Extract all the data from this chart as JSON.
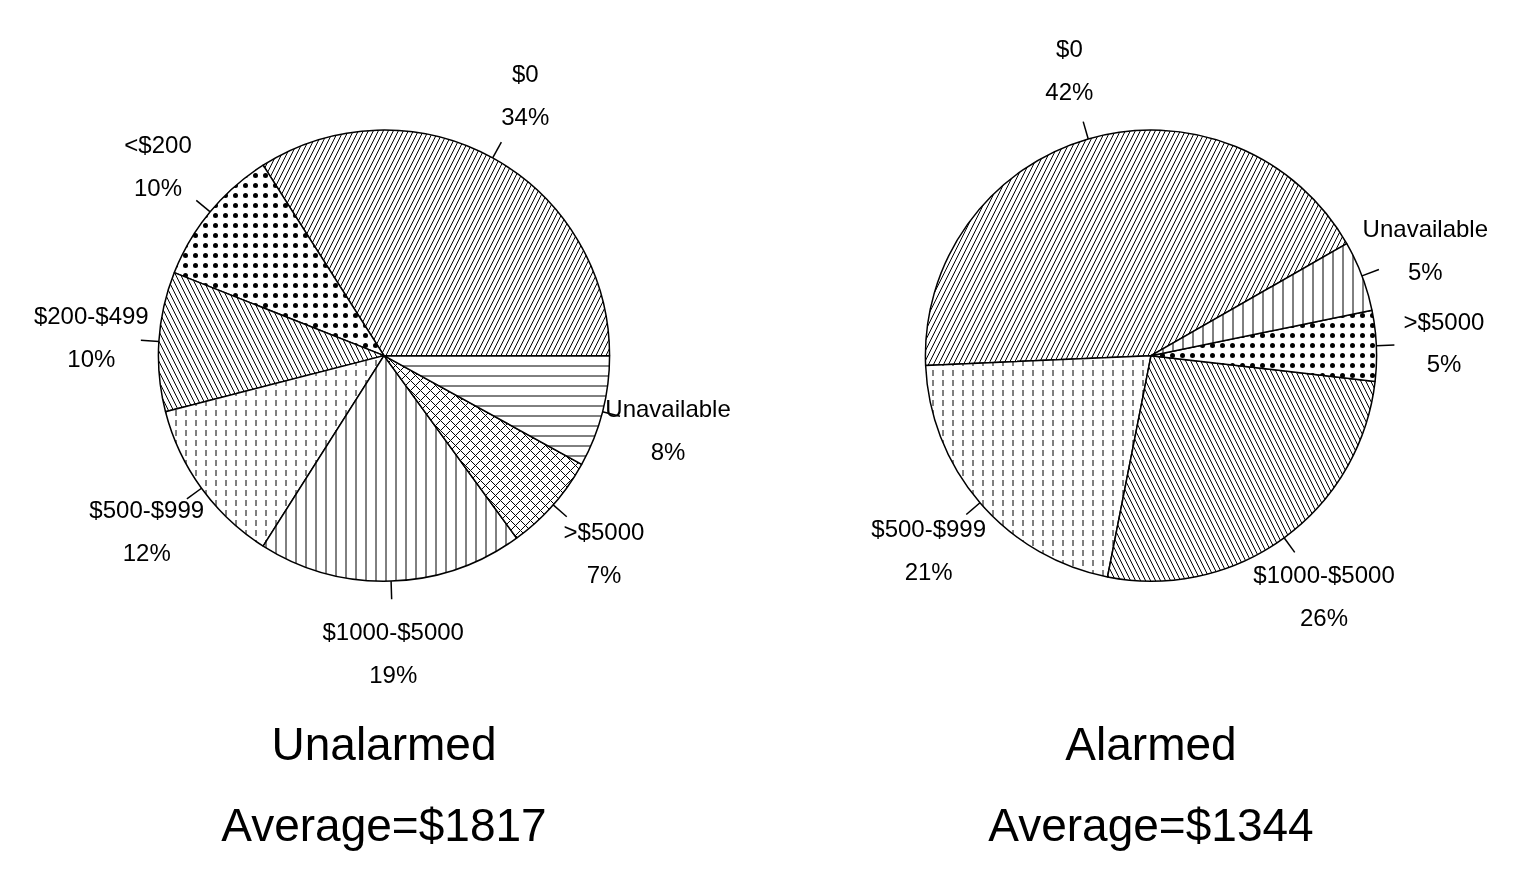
{
  "chart_data": [
    {
      "type": "pie",
      "title": "Unalarmed",
      "subtitle": "Average=$1817",
      "categories": [
        "$0",
        "<$200",
        "$200-$499",
        "$500-$999",
        "$1000-$5000",
        ">$5000",
        "Unavailable"
      ],
      "values": [
        34,
        10,
        10,
        12,
        19,
        7,
        8
      ],
      "value_labels": [
        "34%",
        "10%",
        "10%",
        "12%",
        "19%",
        "7%",
        "8%"
      ],
      "colors": [
        "#ffffff",
        "#ffffff",
        "#ffffff",
        "#ffffff",
        "#ffffff",
        "#ffffff",
        "#ffffff"
      ]
    },
    {
      "type": "pie",
      "title": "Alarmed",
      "subtitle": "Average=$1344",
      "categories": [
        "$0",
        "$500-$999",
        "$1000-$5000",
        ">$5000",
        "Unavailable"
      ],
      "values": [
        42,
        21,
        26,
        5,
        5
      ],
      "value_labels": [
        "42%",
        "21%",
        "26%",
        "5%",
        "5%"
      ],
      "colors": [
        "#ffffff",
        "#ffffff",
        "#ffffff",
        "#ffffff",
        "#ffffff"
      ]
    }
  ]
}
